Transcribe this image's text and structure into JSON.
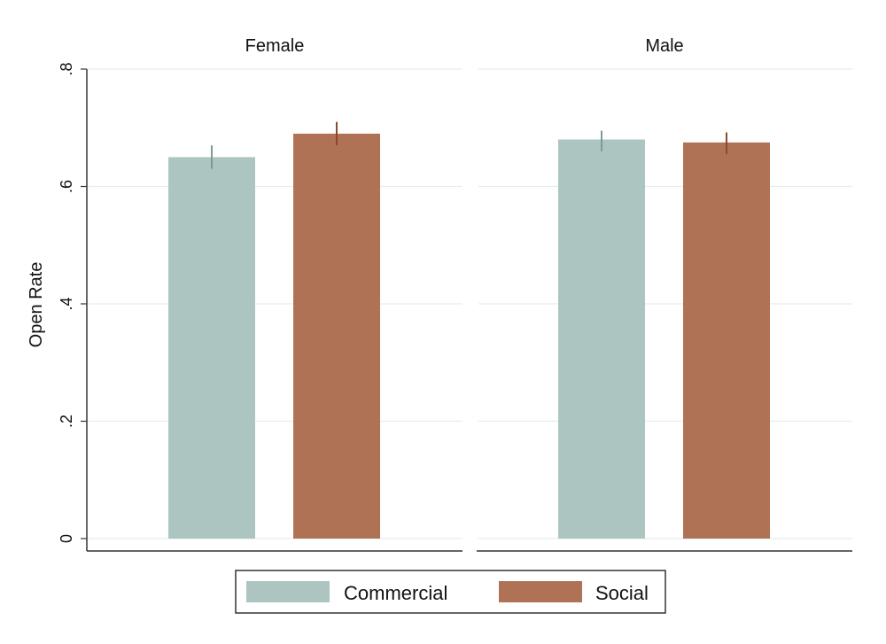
{
  "chart_data": {
    "type": "bar",
    "ylabel": "Open Rate",
    "ylim": [
      0,
      0.8
    ],
    "yticks": [
      {
        "value": 0,
        "label": "0"
      },
      {
        "value": 0.2,
        "label": ".2"
      },
      {
        "value": 0.4,
        "label": ".4"
      },
      {
        "value": 0.6,
        "label": ".6"
      },
      {
        "value": 0.8,
        "label": ".8"
      }
    ],
    "grid": true,
    "legend_position": "bottom",
    "series_styles": [
      {
        "name": "Commercial",
        "color": "#adc5c1"
      },
      {
        "name": "Social",
        "color": "#b07255"
      }
    ],
    "panels": [
      {
        "title": "Female",
        "bars": [
          {
            "series": "Commercial",
            "value": 0.65,
            "ci": [
              0.63,
              0.67
            ]
          },
          {
            "series": "Social",
            "value": 0.69,
            "ci": [
              0.67,
              0.71
            ]
          }
        ]
      },
      {
        "title": "Male",
        "bars": [
          {
            "series": "Commercial",
            "value": 0.68,
            "ci": [
              0.66,
              0.695
            ]
          },
          {
            "series": "Social",
            "value": 0.675,
            "ci": [
              0.655,
              0.692
            ]
          }
        ]
      }
    ]
  }
}
